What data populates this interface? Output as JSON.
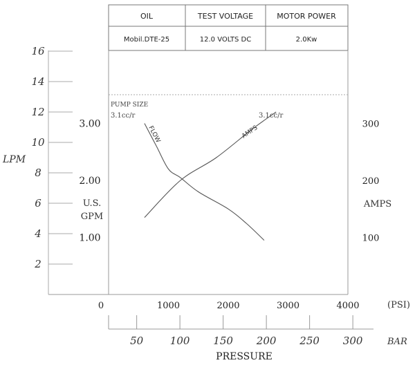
{
  "spec_table": {
    "headers": [
      "OIL",
      "TEST VOLTAGE",
      "MOTOR POWER"
    ],
    "values": [
      "Mobil.DTE-25",
      "12.0 VOLTS DC",
      "2.0Kw"
    ]
  },
  "chart_data": {
    "type": "line",
    "xlabel": "PRESSURE",
    "x_psi": {
      "unit_label": "(PSI)",
      "range": [
        0,
        4000
      ],
      "ticks": [
        0,
        1000,
        2000,
        3000,
        4000
      ]
    },
    "x_bar": {
      "unit_label": "BAR",
      "ticks": [
        50,
        100,
        150,
        200,
        250,
        300
      ]
    },
    "y_lpm": {
      "label": "LPM",
      "range": [
        0,
        16
      ],
      "ticks": [
        2,
        4,
        6,
        8,
        10,
        12,
        14,
        16
      ]
    },
    "y_gpm": {
      "label_line1": "U.S.",
      "label_line2": "GPM",
      "ticks": [
        "1.00",
        "2.00",
        "3.00"
      ]
    },
    "y_amps": {
      "label": "AMPS",
      "range": [
        0,
        400
      ],
      "ticks": [
        100,
        200,
        300
      ]
    },
    "annotations": {
      "pump_size_label": "PUMP SIZE",
      "pump_size_left": "3.1cc/r",
      "pump_size_right": "3.1cc/r"
    },
    "series": [
      {
        "name": "FLOW",
        "axis": "GPM",
        "x": [
          600,
          800,
          1000,
          1200,
          1500,
          2000,
          2300,
          2600
        ],
        "y": [
          3.0,
          2.6,
          2.2,
          2.05,
          1.8,
          1.5,
          1.25,
          0.95
        ]
      },
      {
        "name": "AMPS",
        "axis": "AMPS",
        "x": [
          600,
          1200,
          1800,
          2400,
          2800
        ],
        "y": [
          135,
          200,
          240,
          290,
          320
        ]
      }
    ],
    "grid": false,
    "line_color": "#555555"
  }
}
